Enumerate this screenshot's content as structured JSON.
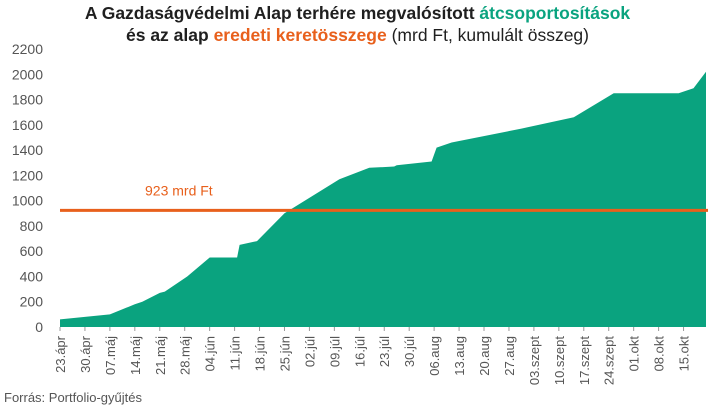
{
  "title": {
    "line1_prefix": "A Gazdaságvédelmi Alap terhére megvalósított ",
    "line1_highlight": "átcsoportosítások",
    "line2_prefix": "és az alap ",
    "line2_highlight": "eredeti keretösszege",
    "line2_suffix": " (mrd Ft, kumulált összeg)"
  },
  "source": "Forrás: Portfolio-gyűjtés",
  "colors": {
    "area": "#0aa37f",
    "reference_line": "#e8601c",
    "axis_text": "#555555"
  },
  "chart_data": {
    "type": "area",
    "title": "A Gazdaságvédelmi Alap terhére megvalósított átcsoportosítások és az alap eredeti keretösszege (mrd Ft, kumulált összeg)",
    "xlabel": "",
    "ylabel": "",
    "ylim": [
      0,
      2200
    ],
    "yticks": [
      0,
      200,
      400,
      600,
      800,
      1000,
      1200,
      1400,
      1600,
      1800,
      2000,
      2200
    ],
    "grid": false,
    "xtick_labels": [
      "23.ápr",
      "30.ápr",
      "07.máj",
      "14.máj",
      "21.máj",
      "28.máj",
      "04.jún",
      "11.jún",
      "18.jún",
      "25.jún",
      "02.júl",
      "09.júl",
      "16.júl",
      "23.júl",
      "30.júl",
      "06.aug",
      "13.aug",
      "20.aug",
      "27.aug",
      "03.szept",
      "10.szept",
      "17.szept",
      "24.szept",
      "01.okt",
      "08.okt",
      "15.okt"
    ],
    "series": [
      {
        "name": "átcsoportosítások",
        "x": [
          0,
          1,
          2,
          3,
          3.3,
          4,
          4.2,
          5.1,
          6,
          6.1,
          7.1,
          7.2,
          7.9,
          9,
          11.2,
          12.4,
          13.4,
          13.5,
          14.9,
          15.1,
          15.7,
          18.5,
          20.6,
          22.2,
          22.7,
          23.4,
          24.1,
          24.8,
          25.4,
          25.9
        ],
        "values": [
          60,
          80,
          100,
          180,
          200,
          270,
          280,
          400,
          550,
          550,
          550,
          650,
          680,
          900,
          1170,
          1260,
          1270,
          1280,
          1310,
          1420,
          1460,
          1570,
          1660,
          1850,
          1850,
          1850,
          1850,
          1850,
          1890,
          2020
        ]
      }
    ],
    "reference_line": {
      "value": 923,
      "label": "923 mrd Ft"
    }
  }
}
